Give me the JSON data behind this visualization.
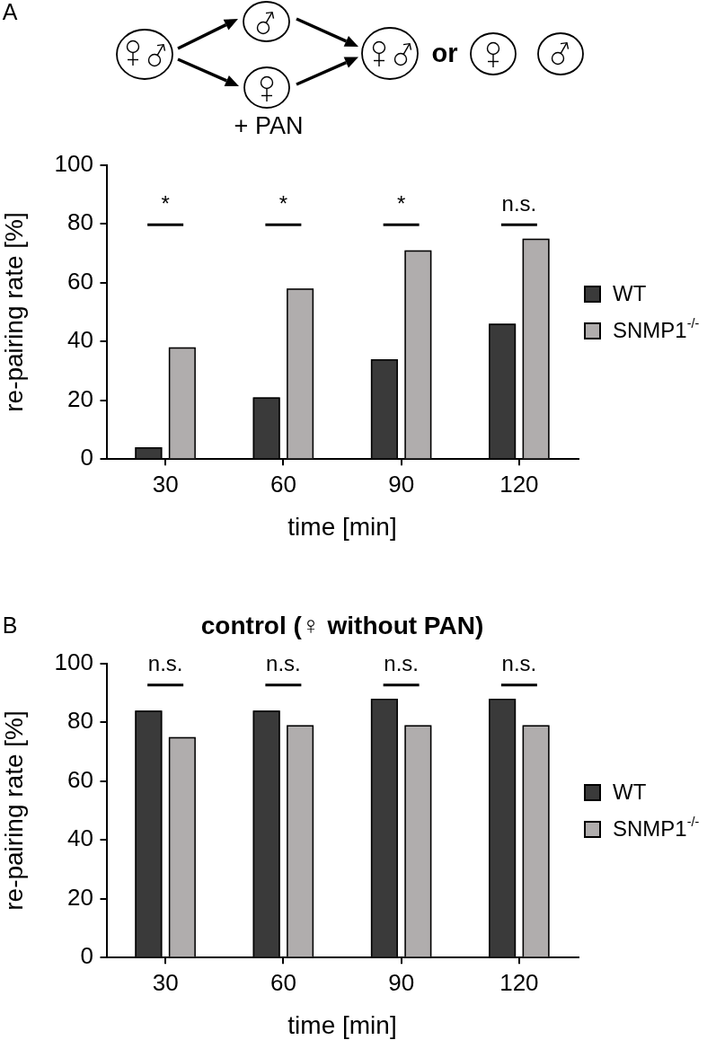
{
  "chart_data": [
    {
      "type": "bar",
      "xlabel": "time [min]",
      "ylabel": "re-pairing rate [%]",
      "categories": [
        "30",
        "60",
        "90",
        "120"
      ],
      "series": [
        {
          "name": "WT",
          "color": "#3a3a3a",
          "values": [
            4,
            21,
            34,
            46
          ]
        },
        {
          "name": "SNMP1$^{-/-}$",
          "color": "#b0adad",
          "values": [
            38,
            58,
            71,
            75
          ]
        }
      ],
      "ylim": [
        0,
        100
      ],
      "yticks": [
        0,
        20,
        40,
        60,
        80,
        100
      ],
      "legend": "right",
      "annotations": [
        "A",
        "+ PAN",
        "or",
        "*",
        "*",
        "*",
        "n.s."
      ]
    },
    {
      "type": "bar",
      "title": "control (♀ without PAN)",
      "xlabel": "time [min]",
      "ylabel": "re-pairing rate [%]",
      "categories": [
        "30",
        "60",
        "90",
        "120"
      ],
      "series": [
        {
          "name": "WT",
          "color": "#3a3a3a",
          "values": [
            84,
            84,
            88,
            88
          ]
        },
        {
          "name": "SNMP1$^{-/-}$",
          "color": "#b0adad",
          "values": [
            75,
            79,
            79,
            79
          ]
        }
      ],
      "ylim": [
        0,
        100
      ],
      "yticks": [
        0,
        20,
        40,
        60,
        80,
        100
      ],
      "legend": "right",
      "annotations": [
        "B",
        "n.s.",
        "n.s.",
        "n.s.",
        "n.s."
      ]
    }
  ]
}
